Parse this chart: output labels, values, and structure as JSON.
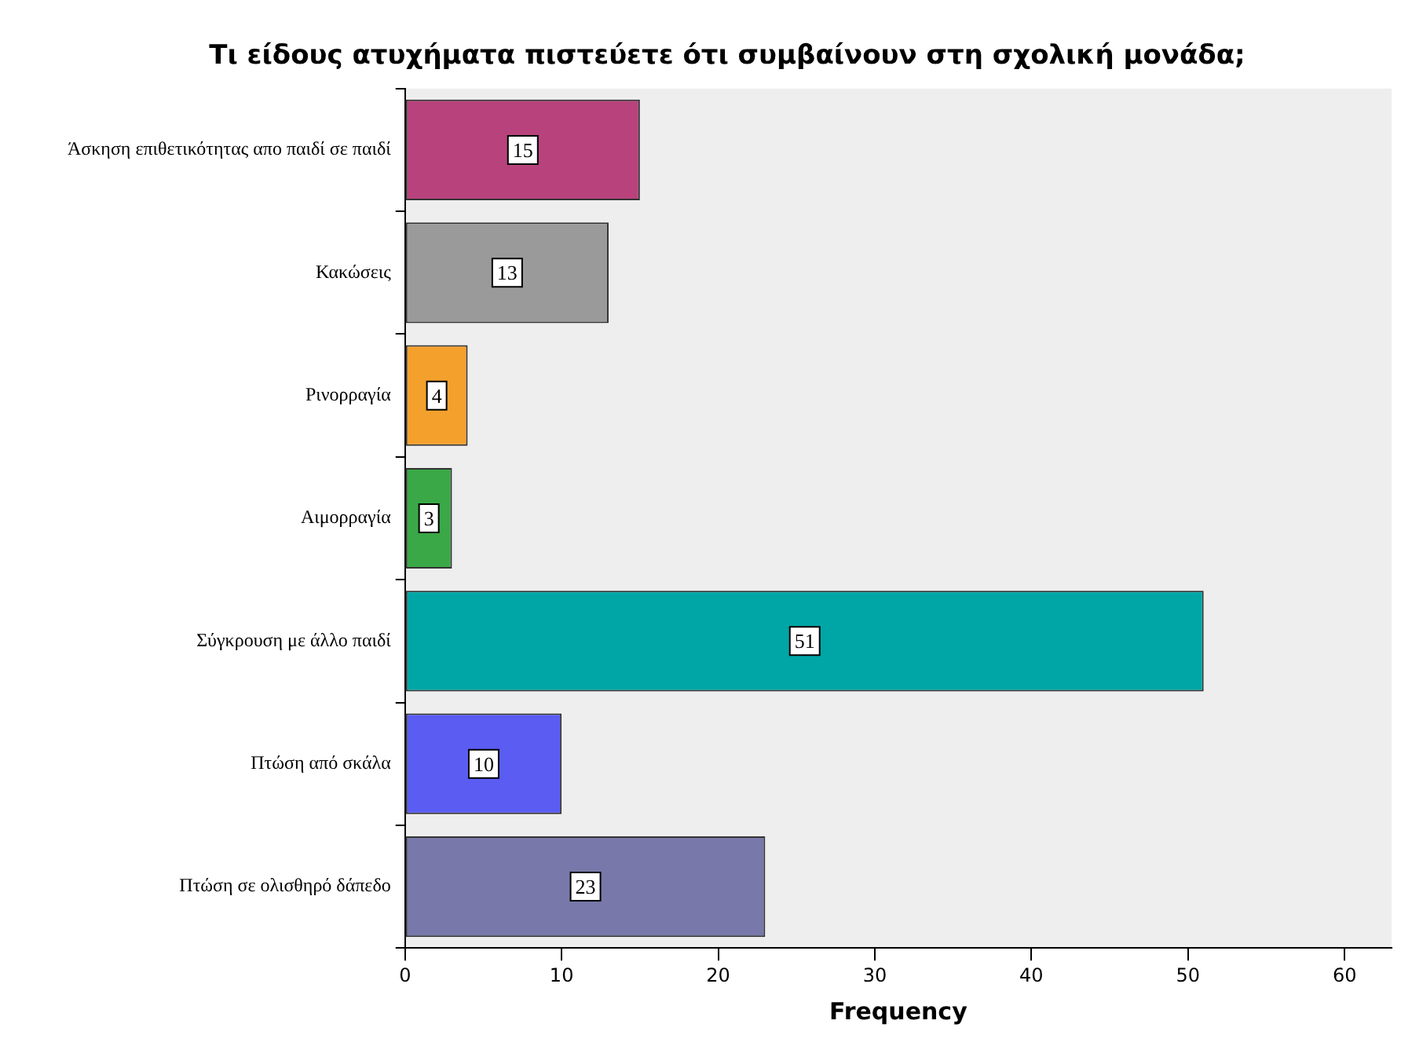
{
  "chart_data": {
    "type": "bar",
    "orientation": "horizontal",
    "title": "Τι είδους ατυχήματα πιστεύετε ότι συμβαίνουν στη σχολική μονάδα;",
    "xlabel": "Frequency",
    "categories": [
      "Άσκηση επιθετικότητας απο παιδί σε παιδί",
      "Κακώσεις",
      "Ρινορραγία",
      "Αιμορραγία",
      "Σύγκρουση με άλλο παιδί",
      "Πτώση από σκάλα",
      "Πτώση σε ολισθηρό δάπεδο"
    ],
    "values": [
      15,
      13,
      4,
      3,
      51,
      10,
      23
    ],
    "colors": [
      "#b8437c",
      "#9a9a9a",
      "#f4a02c",
      "#3aa846",
      "#00a6a6",
      "#5a5cf2",
      "#7878aa"
    ],
    "xlim": [
      0,
      63
    ],
    "xticks": [
      0,
      10,
      20,
      30,
      40,
      50,
      60
    ],
    "data_labels": true,
    "grid": false,
    "legend": false
  }
}
